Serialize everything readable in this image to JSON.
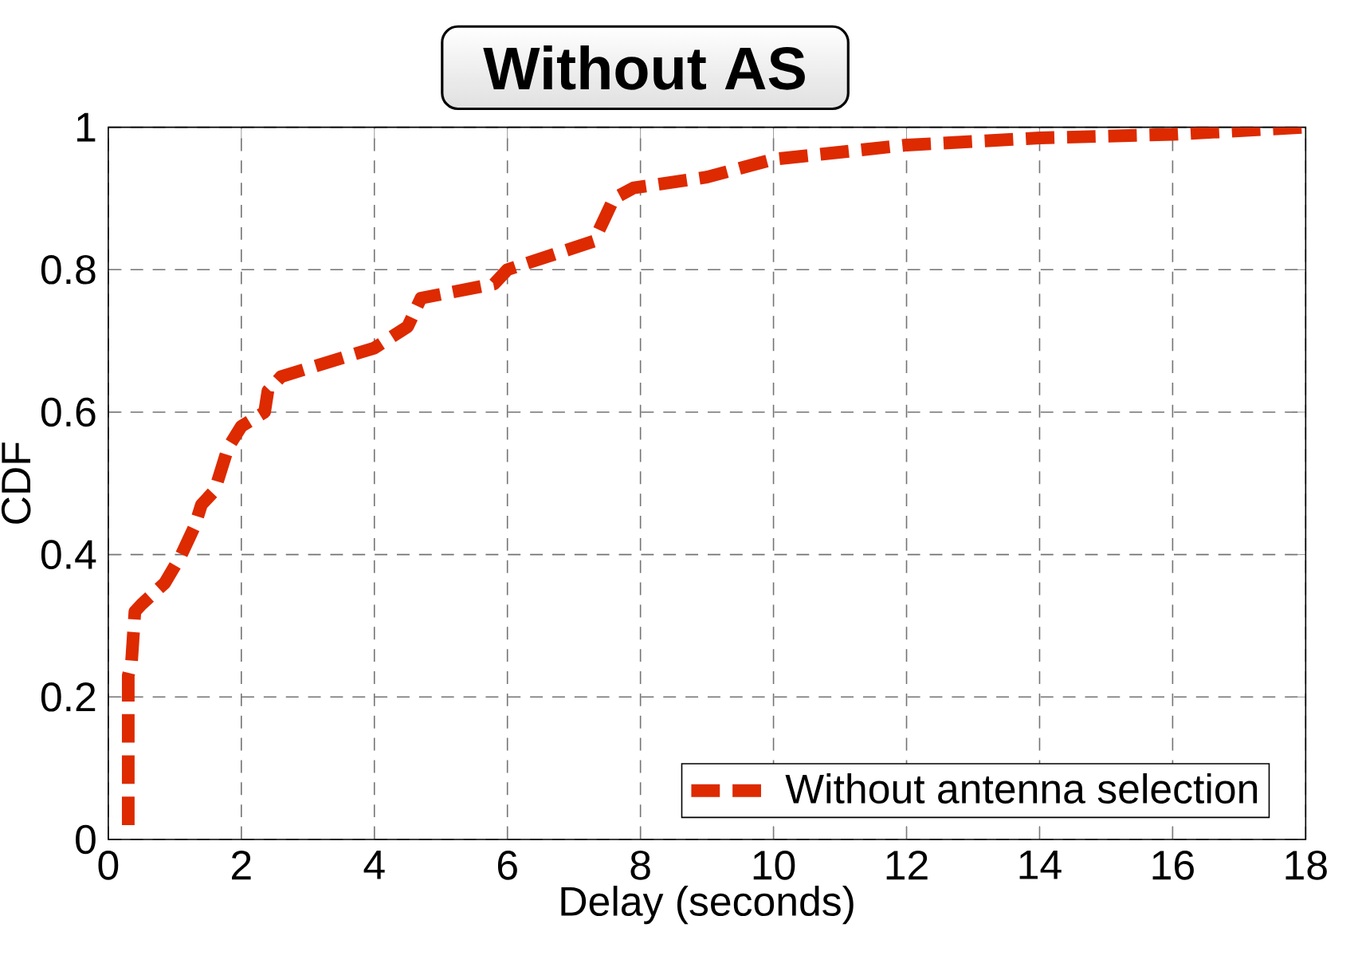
{
  "chart_data": {
    "type": "line",
    "title": "Without AS",
    "xlabel": "Delay (seconds)",
    "ylabel": "CDF",
    "xlim": [
      0,
      18
    ],
    "xticks": [
      0,
      2,
      4,
      6,
      8,
      10,
      12,
      14,
      16,
      18
    ],
    "ylim": [
      0,
      1
    ],
    "yticks": [
      0,
      0.2,
      0.4,
      0.6,
      0.8,
      1
    ],
    "grid": true,
    "legend": "bottom right",
    "line_style": "dashed",
    "series": [
      {
        "name": "Without antenna selection",
        "color": "#dd2a00",
        "x": [
          0.3,
          0.3,
          0.35,
          0.4,
          0.5,
          0.85,
          1.1,
          1.3,
          1.4,
          1.6,
          1.8,
          2.0,
          2.35,
          2.4,
          2.6,
          4.0,
          4.5,
          4.7,
          5.8,
          6.0,
          7.3,
          7.6,
          7.9,
          9,
          10,
          12,
          14,
          16,
          18
        ],
        "values": [
          0.02,
          0.23,
          0.25,
          0.32,
          0.33,
          0.36,
          0.4,
          0.44,
          0.47,
          0.49,
          0.55,
          0.58,
          0.6,
          0.63,
          0.65,
          0.69,
          0.72,
          0.76,
          0.78,
          0.8,
          0.84,
          0.9,
          0.915,
          0.93,
          0.955,
          0.975,
          0.985,
          0.99,
          1.0
        ]
      }
    ]
  }
}
